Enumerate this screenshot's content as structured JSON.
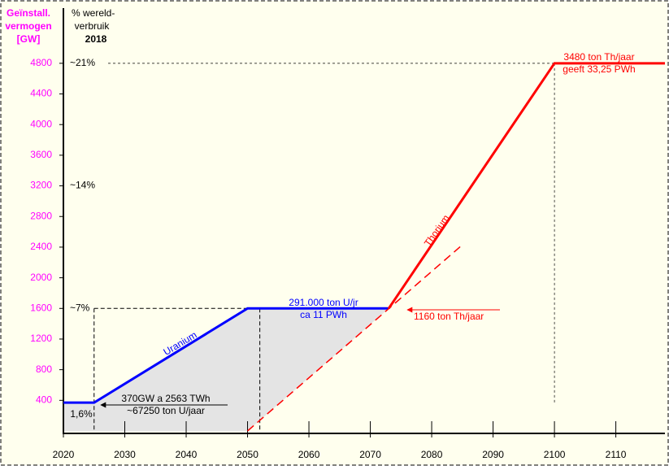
{
  "chart_data": {
    "type": "line",
    "y_axis_label": [
      "Geïnstall.",
      "vermogen",
      "[GW]"
    ],
    "y2_axis_label": [
      "%  wereld-",
      "verbruik",
      "2018"
    ],
    "xlim": [
      2020,
      2118
    ],
    "ylim": [
      0,
      5000
    ],
    "xticks": [
      2020,
      2030,
      2040,
      2050,
      2060,
      2070,
      2080,
      2090,
      2100,
      2110
    ],
    "yticks": [
      400,
      800,
      1200,
      1600,
      2000,
      2400,
      2800,
      3200,
      3600,
      4000,
      4400,
      4800
    ],
    "percent_ticks": [
      {
        "value": 4800,
        "label": "~21%"
      },
      {
        "value": 3200,
        "label": "~14%"
      },
      {
        "value": 1600,
        "label": "~7%"
      }
    ],
    "series": [
      {
        "name": "Uranium",
        "color": "#0000ff",
        "x": [
          2020,
          2025,
          2050,
          2073
        ],
        "values": [
          370,
          370,
          1600,
          1600
        ]
      },
      {
        "name": "Thorium",
        "color": "#ff0000",
        "x": [
          2073,
          2100,
          2118
        ],
        "values": [
          1600,
          4800,
          4800
        ]
      },
      {
        "color": "#ff0000",
        "dashed": true,
        "x": [
          2050,
          2085
        ],
        "values": [
          0,
          2430
        ]
      }
    ],
    "guides": {
      "x": [
        2025,
        2052,
        2100
      ]
    },
    "annotations": [
      {
        "lines": [
          "291.000 ton U/jr",
          "ca 11 PWh"
        ],
        "color": "#0000ff"
      },
      {
        "lines": [
          "370GW a 2563 TWh",
          "~67250 ton U/jaar"
        ],
        "color": "#000000"
      },
      {
        "lines": [
          "1160 ton Th/jaar"
        ],
        "color": "#ff0000"
      },
      {
        "lines": [
          "3480 ton Th/jaar",
          "geeft 33,25 PWh"
        ],
        "color": "#ff0000"
      },
      {
        "lines": [
          "1,6%"
        ],
        "color": "#000000"
      }
    ]
  }
}
